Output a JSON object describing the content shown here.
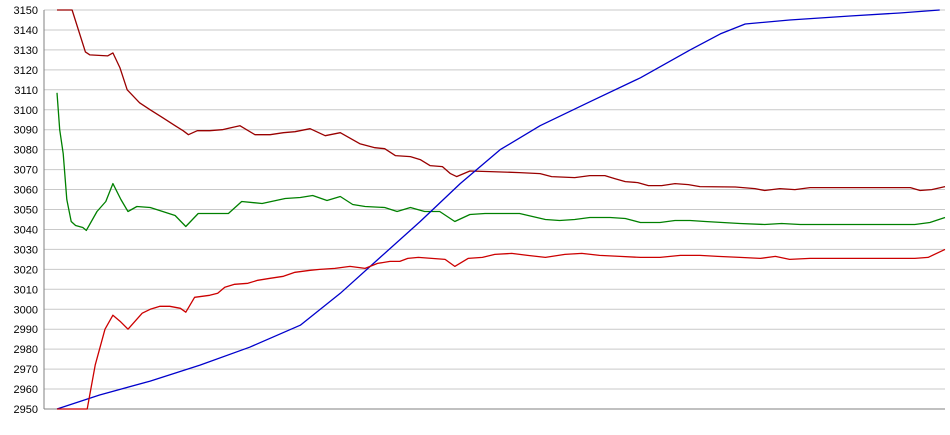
{
  "chart_data": {
    "type": "line",
    "title": "",
    "legend": "none",
    "grid": "horizontal",
    "x_axis": {
      "labels_visible": false,
      "unit": "percent-of-plot-width",
      "range": [
        0,
        100
      ]
    },
    "y_axis": {
      "min": 2950,
      "max": 3150,
      "tick_step": 10,
      "tick_labels": [
        "3150",
        "3140",
        "3130",
        "3120",
        "3110",
        "3100",
        "3090",
        "3080",
        "3070",
        "3060",
        "3050",
        "3040",
        "3030",
        "3020",
        "3010",
        "3000",
        "2990",
        "2980",
        "2970",
        "2960",
        "2950"
      ]
    },
    "series": [
      {
        "name": "dark-red",
        "color": "#990000",
        "points": [
          [
            0,
            3150
          ],
          [
            1.7,
            3150
          ],
          [
            3.2,
            3129
          ],
          [
            3.7,
            3127.5
          ],
          [
            5.7,
            3127
          ],
          [
            6.3,
            3128.5
          ],
          [
            7.1,
            3121
          ],
          [
            7.9,
            3110
          ],
          [
            9.3,
            3103.5
          ],
          [
            10.5,
            3100
          ],
          [
            11.9,
            3096
          ],
          [
            13.3,
            3092
          ],
          [
            14.2,
            3089.5
          ],
          [
            14.8,
            3087.5
          ],
          [
            15.8,
            3089.5
          ],
          [
            17.2,
            3089.5
          ],
          [
            18.6,
            3090
          ],
          [
            20.6,
            3092
          ],
          [
            22.3,
            3087.5
          ],
          [
            24.0,
            3087.5
          ],
          [
            25.5,
            3088.5
          ],
          [
            26.8,
            3089
          ],
          [
            28.5,
            3090.5
          ],
          [
            30.2,
            3087
          ],
          [
            31.9,
            3088.5
          ],
          [
            34.1,
            3083
          ],
          [
            35.8,
            3081
          ],
          [
            36.9,
            3080.5
          ],
          [
            38.1,
            3077
          ],
          [
            39.8,
            3076.5
          ],
          [
            40.9,
            3075
          ],
          [
            42.0,
            3072
          ],
          [
            43.4,
            3071.5
          ],
          [
            44.3,
            3068
          ],
          [
            45.0,
            3066.5
          ],
          [
            46.5,
            3069.3
          ],
          [
            48.8,
            3069
          ],
          [
            52.1,
            3068.5
          ],
          [
            54.4,
            3068
          ],
          [
            55.7,
            3066.5
          ],
          [
            58.3,
            3066
          ],
          [
            60.0,
            3067
          ],
          [
            61.7,
            3067
          ],
          [
            62.8,
            3065.5
          ],
          [
            64.0,
            3064
          ],
          [
            65.4,
            3063.5
          ],
          [
            66.6,
            3062
          ],
          [
            68.1,
            3062
          ],
          [
            69.6,
            3063
          ],
          [
            71.1,
            3062.5
          ],
          [
            72.4,
            3061.5
          ],
          [
            76.4,
            3061.3
          ],
          [
            78.6,
            3060.5
          ],
          [
            79.7,
            3059.5
          ],
          [
            81.4,
            3060.5
          ],
          [
            83.1,
            3060
          ],
          [
            84.8,
            3061
          ],
          [
            96.1,
            3061
          ],
          [
            97.2,
            3059.5
          ],
          [
            98.5,
            3060
          ],
          [
            100,
            3061.5
          ]
        ]
      },
      {
        "name": "green",
        "color": "#008000",
        "points": [
          [
            0,
            3108.5
          ],
          [
            0.3,
            3090
          ],
          [
            0.7,
            3078
          ],
          [
            1.1,
            3055
          ],
          [
            1.6,
            3044
          ],
          [
            2.1,
            3042
          ],
          [
            2.9,
            3041
          ],
          [
            3.3,
            3039.5
          ],
          [
            4.5,
            3049
          ],
          [
            5.5,
            3054
          ],
          [
            6.3,
            3063
          ],
          [
            7.2,
            3055
          ],
          [
            8.0,
            3049
          ],
          [
            9.0,
            3051.5
          ],
          [
            10.5,
            3051
          ],
          [
            11.9,
            3049
          ],
          [
            13.3,
            3047
          ],
          [
            14.5,
            3041.5
          ],
          [
            15.9,
            3048
          ],
          [
            19.3,
            3048
          ],
          [
            20.8,
            3054
          ],
          [
            23.1,
            3053
          ],
          [
            25.7,
            3055.5
          ],
          [
            27.4,
            3056
          ],
          [
            28.8,
            3057
          ],
          [
            30.4,
            3054.5
          ],
          [
            31.9,
            3056.5
          ],
          [
            33.3,
            3052.5
          ],
          [
            34.7,
            3051.5
          ],
          [
            36.9,
            3051
          ],
          [
            38.3,
            3049
          ],
          [
            39.8,
            3051
          ],
          [
            41.4,
            3049
          ],
          [
            43.1,
            3049
          ],
          [
            44.8,
            3044
          ],
          [
            46.5,
            3047.5
          ],
          [
            48.2,
            3048
          ],
          [
            52.1,
            3048
          ],
          [
            55.0,
            3045
          ],
          [
            56.6,
            3044.5
          ],
          [
            58.3,
            3045
          ],
          [
            60.0,
            3046
          ],
          [
            62.3,
            3046
          ],
          [
            64.0,
            3045.5
          ],
          [
            65.7,
            3043.5
          ],
          [
            67.9,
            3043.5
          ],
          [
            69.6,
            3044.5
          ],
          [
            71.3,
            3044.5
          ],
          [
            73.0,
            3044
          ],
          [
            76.9,
            3043
          ],
          [
            79.7,
            3042.5
          ],
          [
            81.6,
            3043
          ],
          [
            83.7,
            3042.5
          ],
          [
            96.6,
            3042.5
          ],
          [
            98.3,
            3043.5
          ],
          [
            100,
            3046
          ]
        ]
      },
      {
        "name": "blue",
        "color": "#0000CC",
        "points": [
          [
            0,
            2950
          ],
          [
            4.8,
            2957
          ],
          [
            10.5,
            2964
          ],
          [
            16.1,
            2972
          ],
          [
            21.7,
            2981
          ],
          [
            27.4,
            2992
          ],
          [
            31.9,
            3008
          ],
          [
            36.4,
            3026
          ],
          [
            40.9,
            3044
          ],
          [
            45.4,
            3063
          ],
          [
            49.9,
            3080
          ],
          [
            54.4,
            3092
          ],
          [
            60.0,
            3104
          ],
          [
            65.7,
            3116
          ],
          [
            71.3,
            3130
          ],
          [
            74.7,
            3138
          ],
          [
            77.5,
            3143
          ],
          [
            82.5,
            3145
          ],
          [
            89.3,
            3147
          ],
          [
            94.9,
            3148.5
          ],
          [
            99.4,
            3150
          ]
        ]
      },
      {
        "name": "bright-red",
        "color": "#CC0000",
        "points": [
          [
            0,
            2950
          ],
          [
            3.4,
            2950
          ],
          [
            4.3,
            2972
          ],
          [
            5.4,
            2990
          ],
          [
            6.3,
            2997
          ],
          [
            7.1,
            2994
          ],
          [
            8.0,
            2990
          ],
          [
            8.8,
            2994
          ],
          [
            9.6,
            2998
          ],
          [
            10.5,
            3000
          ],
          [
            11.6,
            3001.5
          ],
          [
            12.7,
            3001.5
          ],
          [
            13.9,
            3000.5
          ],
          [
            14.5,
            2998.5
          ],
          [
            15.5,
            3006
          ],
          [
            17.2,
            3007
          ],
          [
            18.1,
            3008
          ],
          [
            18.9,
            3011
          ],
          [
            20.0,
            3012.5
          ],
          [
            21.5,
            3013
          ],
          [
            22.6,
            3014.5
          ],
          [
            24.0,
            3015.5
          ],
          [
            25.5,
            3016.5
          ],
          [
            26.8,
            3018.5
          ],
          [
            28.5,
            3019.5
          ],
          [
            29.6,
            3020
          ],
          [
            31.3,
            3020.5
          ],
          [
            33.0,
            3021.5
          ],
          [
            34.7,
            3020.5
          ],
          [
            36.1,
            3023
          ],
          [
            37.5,
            3024
          ],
          [
            38.6,
            3024
          ],
          [
            39.5,
            3025.5
          ],
          [
            40.7,
            3026
          ],
          [
            42.2,
            3025.5
          ],
          [
            43.7,
            3025
          ],
          [
            44.8,
            3021.5
          ],
          [
            46.3,
            3025.5
          ],
          [
            47.9,
            3026
          ],
          [
            49.3,
            3027.5
          ],
          [
            51.2,
            3028
          ],
          [
            53.0,
            3027
          ],
          [
            55.0,
            3026
          ],
          [
            57.2,
            3027.5
          ],
          [
            59.1,
            3028
          ],
          [
            61.1,
            3027
          ],
          [
            63.4,
            3026.5
          ],
          [
            65.7,
            3026
          ],
          [
            67.9,
            3026
          ],
          [
            70.2,
            3027
          ],
          [
            72.4,
            3027
          ],
          [
            74.4,
            3026.5
          ],
          [
            76.9,
            3026
          ],
          [
            79.2,
            3025.5
          ],
          [
            80.9,
            3026.5
          ],
          [
            82.5,
            3025
          ],
          [
            84.8,
            3025.5
          ],
          [
            96.6,
            3025.5
          ],
          [
            98.1,
            3026
          ],
          [
            100,
            3030
          ]
        ]
      }
    ]
  },
  "colors": {
    "background": "#FFFFFF",
    "gridline": "#C9C9C9",
    "axis": "#808080",
    "tick_label": "#000000"
  }
}
